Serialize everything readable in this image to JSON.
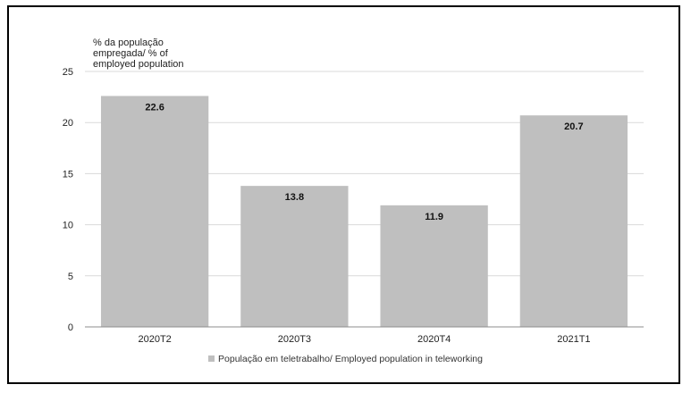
{
  "chart_data": {
    "type": "bar",
    "title": "",
    "ylabel": "% da população\nempregada/ % of\nemployed population",
    "xlabel": "",
    "categories": [
      "2020T2",
      "2020T3",
      "2020T4",
      "2021T1"
    ],
    "series": [
      {
        "name": "População em teletrabalho/ Employed population in teleworking",
        "values": [
          22.6,
          13.8,
          11.9,
          20.7
        ],
        "color": "#bfbfbf"
      }
    ],
    "ylim": [
      0,
      25
    ],
    "yticks": [
      0,
      5,
      10,
      15,
      20,
      25
    ],
    "grid": true,
    "legend_position": "bottom-center",
    "colors": {
      "grid": "#d9d9d9",
      "axis": "#8c8c8c",
      "frame": "#000000"
    }
  }
}
